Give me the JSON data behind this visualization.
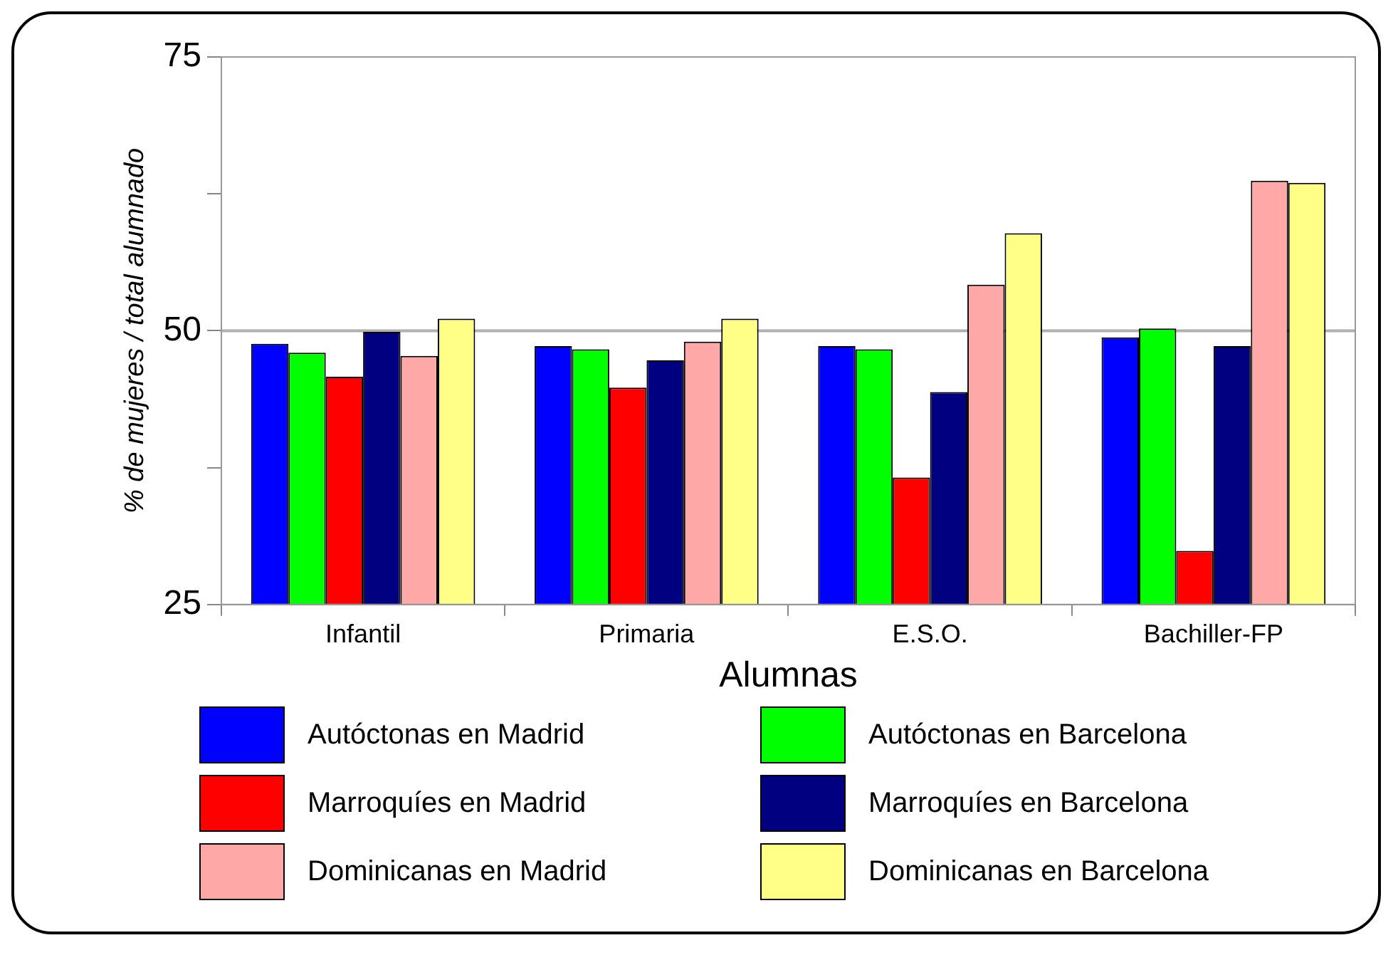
{
  "chart_data": {
    "type": "bar",
    "xlabel": "Alumnas",
    "ylabel": "% de mujeres / total alumnado",
    "categories": [
      "Infantil",
      "Primaria",
      "E.S.O.",
      "Bachiller-FP"
    ],
    "series": [
      {
        "name": "Autóctonas en Madrid",
        "color": "#0000ff",
        "values": [
          48.8,
          48.6,
          48.6,
          49.4
        ]
      },
      {
        "name": "Autóctonas en Barcelona",
        "color": "#00ff00",
        "values": [
          48.0,
          48.3,
          48.3,
          50.2
        ]
      },
      {
        "name": "Marroquíes en Madrid",
        "color": "#ff0000",
        "values": [
          45.8,
          44.8,
          36.6,
          29.9
        ]
      },
      {
        "name": "Marroquíes en Barcelona",
        "color": "#000080",
        "values": [
          49.9,
          47.3,
          44.4,
          48.6
        ]
      },
      {
        "name": "Dominicanas en Madrid",
        "color": "#ffa8a8",
        "values": [
          47.7,
          49.0,
          54.2,
          63.7
        ]
      },
      {
        "name": "Dominicanas en Barcelona",
        "color": "#ffff88",
        "values": [
          51.1,
          51.1,
          58.9,
          63.5
        ]
      }
    ],
    "ylim": [
      25,
      75
    ],
    "yticks": [
      25,
      {
        "value": 37.5,
        "label": null
      },
      50,
      {
        "value": 62.5,
        "label": null
      },
      75
    ],
    "ref_lines": [
      {
        "axis": "y",
        "value": 50,
        "color": "#b0b0b0"
      }
    ],
    "legend": "bottom"
  }
}
